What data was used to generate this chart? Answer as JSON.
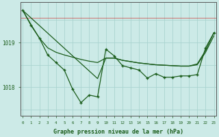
{
  "title": "Graphe pression niveau de la mer (hPa)",
  "background_color": "#cceae7",
  "grid_color": "#aad4d0",
  "line_color": "#1a5c1a",
  "x_values": [
    0,
    1,
    2,
    3,
    4,
    5,
    6,
    7,
    8,
    9,
    10,
    11,
    12,
    13,
    14,
    15,
    16,
    17,
    18,
    19,
    20,
    21,
    22,
    23
  ],
  "line_straight": [
    1019.72,
    1019.55,
    1019.38,
    1019.21,
    1019.04,
    1018.87,
    1018.7,
    1018.53,
    1018.36,
    1018.19,
    1018.65,
    1018.65,
    1018.6,
    1018.57,
    1018.54,
    1018.52,
    1018.5,
    1018.49,
    1018.48,
    1018.47,
    1018.47,
    1018.52,
    1018.82,
    1019.22
  ],
  "line_curve": [
    1019.72,
    1019.4,
    1019.1,
    1018.88,
    1018.78,
    1018.72,
    1018.67,
    1018.62,
    1018.58,
    1018.55,
    1018.65,
    1018.65,
    1018.6,
    1018.57,
    1018.54,
    1018.52,
    1018.5,
    1018.49,
    1018.48,
    1018.47,
    1018.47,
    1018.5,
    1018.78,
    1019.15
  ],
  "line_markers": [
    1019.72,
    1019.38,
    1019.1,
    1018.72,
    1018.55,
    1018.38,
    1017.95,
    1017.65,
    1017.82,
    1017.78,
    1018.85,
    1018.7,
    1018.48,
    1018.43,
    1018.38,
    1018.2,
    1018.3,
    1018.22,
    1018.22,
    1018.25,
    1018.25,
    1018.28,
    1018.88,
    1019.22
  ],
  "ylim": [
    1017.35,
    1019.9
  ],
  "yticks": [
    1018,
    1019
  ],
  "redline_y": 1019.55
}
